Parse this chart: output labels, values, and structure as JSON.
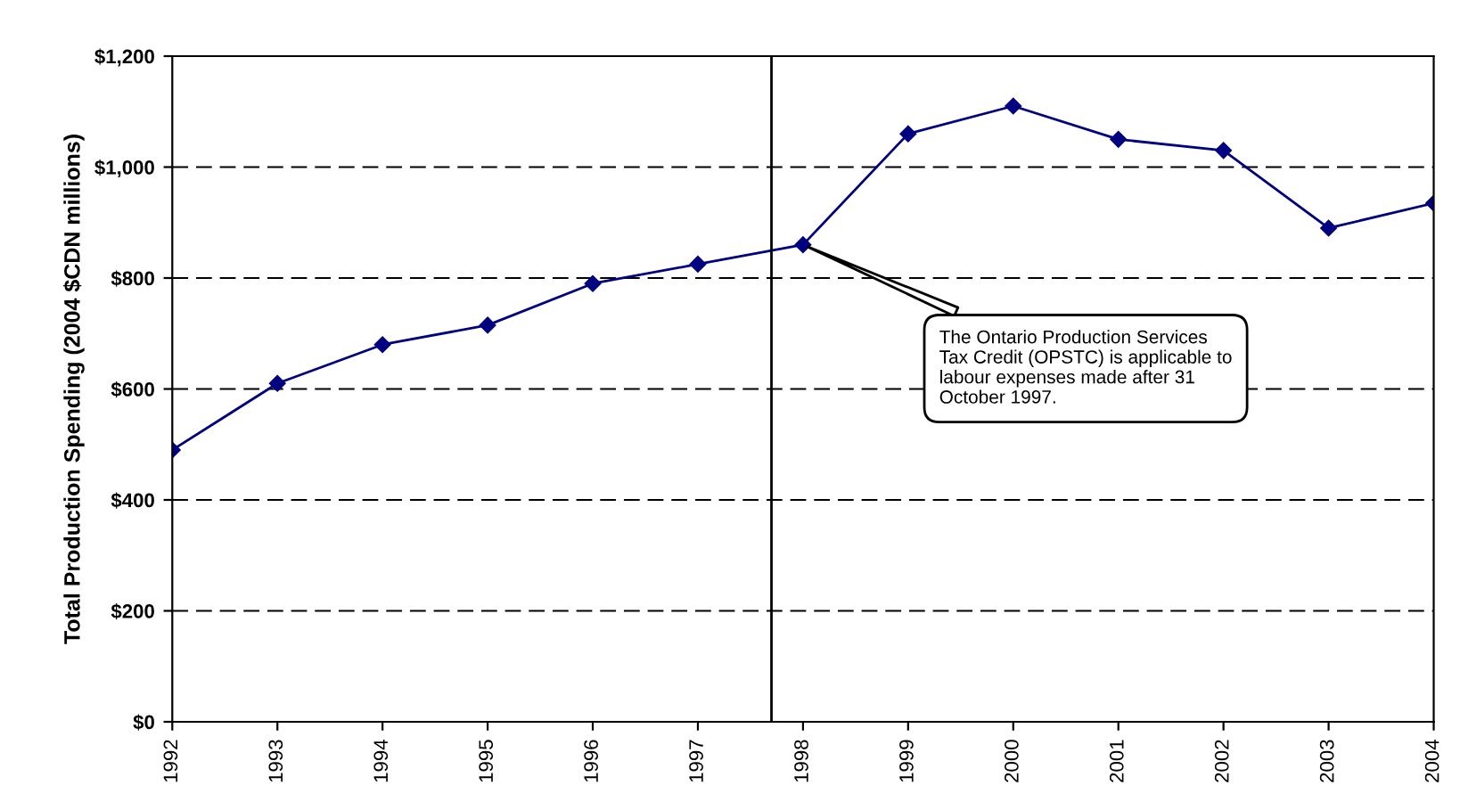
{
  "chart_data": {
    "type": "line",
    "ylabel": "Total Production Spending (2004 $CDN millions)",
    "x": [
      1992,
      1993,
      1994,
      1995,
      1996,
      1997,
      1998,
      1999,
      2000,
      2001,
      2002,
      2003,
      2004
    ],
    "series": [
      {
        "color": "#000080",
        "values": [
          490,
          610,
          680,
          715,
          790,
          825,
          860,
          1060,
          1110,
          1050,
          1030,
          890,
          935
        ]
      }
    ],
    "xlim": [
      1992,
      2004
    ],
    "xticks": [
      1992,
      1993,
      1994,
      1995,
      1996,
      1997,
      1998,
      1999,
      2000,
      2001,
      2002,
      2003,
      2004
    ],
    "ylim": [
      0,
      1200
    ],
    "yticks": [
      {
        "value": 0,
        "label": "$0"
      },
      {
        "value": 200,
        "label": "$200"
      },
      {
        "value": 400,
        "label": "$400"
      },
      {
        "value": 600,
        "label": "$600"
      },
      {
        "value": 800,
        "label": "$800"
      },
      {
        "value": 1000,
        "label": "$1,000"
      },
      {
        "value": 1200,
        "label": "$1,200"
      }
    ],
    "grid": "y",
    "marker": "diamond",
    "line_style": "solid",
    "legend": false,
    "ref_lines": [
      {
        "axis": "x",
        "value": 1997.7,
        "color": "#000000",
        "line_style": "solid"
      }
    ],
    "annotations": [
      {
        "text": "The Ontario Production Services\nTax Credit (OPSTC) is applicable to\nlabour expenses made after 31\nOctober 1997.",
        "x": 1998,
        "y": 860
      }
    ]
  }
}
